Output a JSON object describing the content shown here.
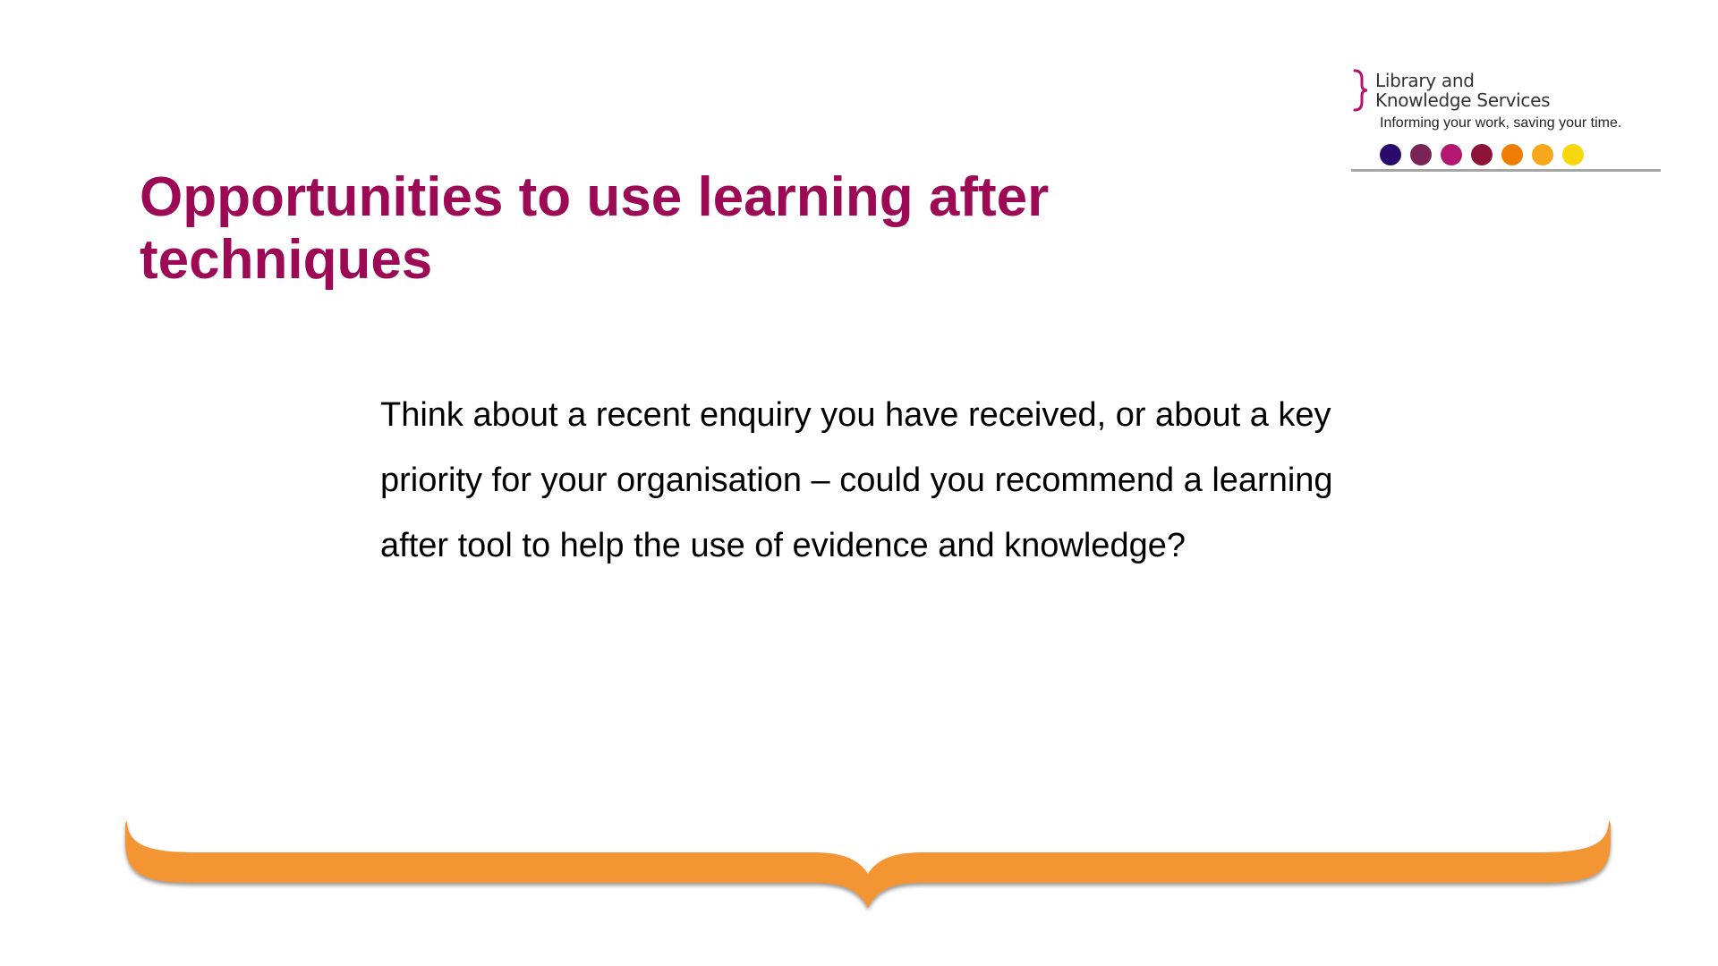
{
  "logo": {
    "line1": "Library and",
    "line2": "Knowledge Services",
    "tagline": "Informing your work, saving your time.",
    "brace_color": "#b5126b",
    "dot_colors": [
      "#2b0a6b",
      "#7a2355",
      "#b3176f",
      "#8c1238",
      "#ef7d00",
      "#f6a71c",
      "#f8d80c"
    ]
  },
  "slide": {
    "title": "Opportunities to use learning after techniques",
    "body": "Think about a recent enquiry you have received, or about a key priority for your organisation – could you recommend a learning after tool to help the use of evidence and knowledge?",
    "title_color": "#9c0a56",
    "accent_color": "#f39530"
  }
}
